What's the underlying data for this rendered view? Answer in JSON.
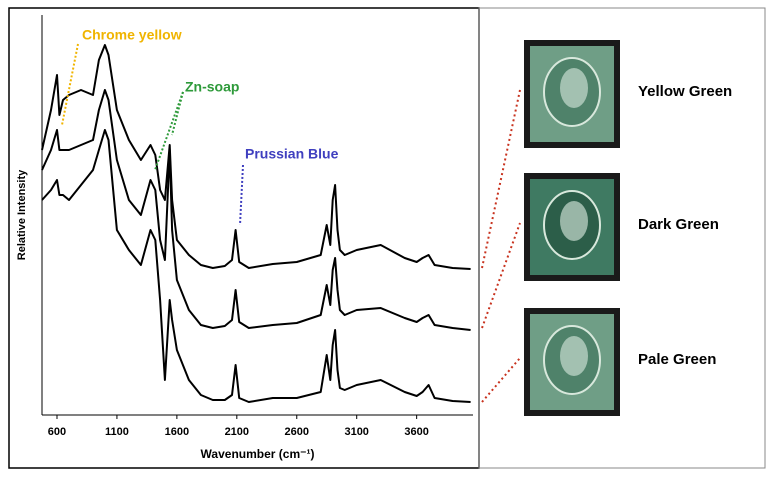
{
  "chart_data": {
    "type": "line",
    "xlabel": "Wavenumber (cm⁻¹)",
    "ylabel": "Relative Intensity",
    "x": [
      475,
      550,
      600,
      620,
      650,
      700,
      800,
      900,
      950,
      1000,
      1030,
      1100,
      1200,
      1300,
      1380,
      1420,
      1460,
      1500,
      1540,
      1560,
      1600,
      1700,
      1800,
      1900,
      2000,
      2060,
      2090,
      2120,
      2200,
      2400,
      2600,
      2800,
      2850,
      2880,
      2900,
      2920,
      2940,
      2960,
      3000,
      3100,
      3300,
      3500,
      3600,
      3650,
      3700,
      3750,
      3900,
      4050
    ],
    "series": [
      {
        "name": "Yellow Green",
        "color": "#000000",
        "values": [
          66.25,
          76.25,
          85,
          75,
          78.75,
          80,
          81.25,
          80,
          88.75,
          92.5,
          90,
          76.25,
          68.75,
          63.75,
          67.5,
          65,
          56.25,
          53.75,
          67.5,
          53.75,
          43.75,
          40,
          37.5,
          36.75,
          37.25,
          38.75,
          46.25,
          38.25,
          36.75,
          37.75,
          38.25,
          40,
          47.5,
          42.5,
          53.75,
          57.5,
          46.25,
          41.25,
          40,
          41.25,
          42.5,
          39.25,
          38.25,
          39.25,
          40,
          37.5,
          36.75,
          36.5
        ]
      },
      {
        "name": "Dark Green",
        "color": "#000000",
        "values": [
          61.25,
          66.25,
          71.25,
          66.25,
          66.25,
          66.25,
          67.5,
          68.75,
          76.25,
          81.25,
          78.75,
          63.75,
          53.75,
          50,
          58.75,
          56.25,
          43.75,
          38.75,
          66.25,
          46.25,
          33.75,
          26.25,
          22.5,
          21.75,
          22.25,
          23.75,
          31.25,
          23.25,
          21.75,
          22.5,
          23,
          25,
          32.5,
          27.5,
          36.25,
          39.25,
          31.25,
          26.25,
          25,
          26.25,
          26.75,
          24.25,
          23.25,
          24.25,
          25,
          22.5,
          21.75,
          21.25
        ]
      },
      {
        "name": "Pale Green",
        "color": "#000000",
        "values": [
          53.75,
          56.25,
          58.75,
          55,
          55,
          53.75,
          57.5,
          61.25,
          66.25,
          71.25,
          68.75,
          46.25,
          41.25,
          37.5,
          46.25,
          43.75,
          28.75,
          8.75,
          28.75,
          23.75,
          16.25,
          8.75,
          5,
          3.75,
          3.75,
          5,
          12.5,
          4.25,
          3.25,
          4.25,
          4.25,
          5.75,
          15,
          8.75,
          17.5,
          21.25,
          11.25,
          6.75,
          6.25,
          7.5,
          8.75,
          5.75,
          4.75,
          5.75,
          7.5,
          4.25,
          3.5,
          3.25
        ]
      }
    ],
    "xlim": [
      475,
      4070
    ],
    "xticks": [
      600,
      1100,
      1600,
      2100,
      2600,
      3100,
      3600
    ],
    "ylim": [
      0,
      100
    ],
    "annotations": [
      {
        "text": "Chrome yellow",
        "color": "#f0b400"
      },
      {
        "text": "Zn-soap",
        "color": "#2e9a3a"
      },
      {
        "text": "Prussian Blue",
        "color": "#3f3fbf"
      }
    ]
  }
}
